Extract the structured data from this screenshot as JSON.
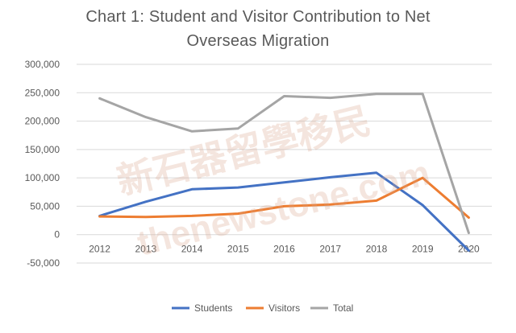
{
  "chart_data": {
    "type": "line",
    "title_line1": "Chart 1: Student and Visitor Contribution to Net",
    "title_line2": "Overseas Migration",
    "categories": [
      "2012",
      "2013",
      "2014",
      "2015",
      "2016",
      "2017",
      "2018",
      "2019",
      "2020"
    ],
    "series": [
      {
        "name": "Students",
        "color": "#4472c4",
        "values": [
          33000,
          58000,
          80000,
          83000,
          92000,
          101000,
          109000,
          52000,
          -28000
        ]
      },
      {
        "name": "Visitors",
        "color": "#ed7d31",
        "values": [
          32000,
          31000,
          33000,
          37000,
          50000,
          53000,
          60000,
          100000,
          30000
        ]
      },
      {
        "name": "Total",
        "color": "#a5a5a5",
        "values": [
          240000,
          207000,
          182000,
          187000,
          244000,
          241000,
          248000,
          248000,
          3000
        ]
      }
    ],
    "ylim": [
      -50000,
      300000
    ],
    "yticks": [
      "300,000",
      "250,000",
      "200,000",
      "150,000",
      "100,000",
      "50,000",
      "0",
      "-50,000"
    ],
    "grid": true,
    "legend_position": "bottom"
  },
  "watermark": {
    "cn": "新石器留學移民",
    "url": "thenewstone.com"
  }
}
